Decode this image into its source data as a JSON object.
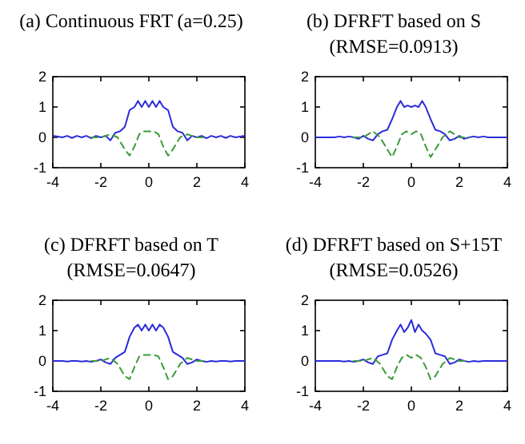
{
  "chart_data": [
    {
      "type": "line",
      "title": "(a) Continuous FRT (a=0.25)",
      "xlim": [
        -4,
        4
      ],
      "xticks": [
        -4,
        -2,
        0,
        2,
        4
      ],
      "ylim": [
        -1,
        2
      ],
      "yticks": [
        -1,
        0,
        1,
        2
      ],
      "series": [
        {
          "color": "#2b2bdc",
          "line_style": "solid",
          "x": [
            -4,
            -3.6,
            -3.4,
            -3.2,
            -3,
            -2.8,
            -2.6,
            -2.4,
            -2.2,
            -2,
            -1.8,
            -1.6,
            -1.4,
            -1.2,
            -1,
            -0.8,
            -0.6,
            -0.45,
            -0.3,
            -0.15,
            0,
            0.15,
            0.3,
            0.45,
            0.6,
            0.8,
            1,
            1.2,
            1.4,
            1.6,
            1.8,
            2,
            2.2,
            2.4,
            2.6,
            2.8,
            3,
            3.2,
            3.4,
            3.6,
            4
          ],
          "values": [
            0.05,
            0,
            0.05,
            -0.02,
            0.05,
            0,
            0.05,
            -0.03,
            0.05,
            0,
            0.05,
            -0.1,
            0.15,
            0.2,
            0.35,
            0.9,
            1.0,
            1.2,
            1.0,
            1.2,
            1.0,
            1.2,
            1.0,
            1.2,
            1.0,
            0.9,
            0.35,
            0.2,
            0.15,
            -0.1,
            0.05,
            0,
            0.05,
            -0.03,
            0.05,
            0,
            0.05,
            -0.02,
            0.05,
            0,
            0.05
          ]
        },
        {
          "color": "#3a9a3a",
          "line_style": "dashed",
          "x": [
            -2.4,
            -2,
            -1.6,
            -1.3,
            -1,
            -0.8,
            -0.6,
            -0.4,
            -0.2,
            0,
            0.2,
            0.4,
            0.6,
            0.8,
            1,
            1.3,
            1.6,
            2,
            2.4
          ],
          "values": [
            0,
            0,
            0.1,
            0,
            -0.4,
            -0.6,
            -0.3,
            0.1,
            0.2,
            0.2,
            0.2,
            0.1,
            -0.3,
            -0.6,
            -0.4,
            0,
            0.1,
            0,
            0
          ]
        }
      ]
    },
    {
      "type": "line",
      "title": "(b) DFRFT based on S",
      "subtitle": "(RMSE=0.0913)",
      "xlim": [
        -4,
        4
      ],
      "xticks": [
        -4,
        -2,
        0,
        2,
        4
      ],
      "ylim": [
        -1,
        2
      ],
      "yticks": [
        -1,
        0,
        1,
        2
      ],
      "series": [
        {
          "color": "#2b2bdc",
          "line_style": "solid",
          "x": [
            -4,
            -3.6,
            -3.4,
            -3.2,
            -3,
            -2.8,
            -2.6,
            -2.4,
            -2.2,
            -2,
            -1.8,
            -1.6,
            -1.4,
            -1.2,
            -1,
            -0.8,
            -0.6,
            -0.45,
            -0.3,
            -0.15,
            0,
            0.15,
            0.3,
            0.45,
            0.6,
            0.8,
            1,
            1.2,
            1.4,
            1.6,
            1.8,
            2,
            2.2,
            2.4,
            2.6,
            2.8,
            3,
            3.2,
            3.4,
            3.6,
            4
          ],
          "values": [
            0,
            0,
            0,
            0,
            0.03,
            0,
            0.03,
            0,
            -0.05,
            0.05,
            -0.05,
            -0.1,
            0.1,
            0.2,
            0.25,
            0.6,
            1.0,
            1.2,
            1.0,
            1.05,
            1.0,
            1.05,
            1.0,
            1.2,
            1.0,
            0.6,
            0.25,
            0.2,
            0.1,
            -0.1,
            -0.05,
            0.05,
            -0.05,
            0,
            0.03,
            0,
            0.03,
            0,
            0,
            0,
            0
          ]
        },
        {
          "color": "#3a9a3a",
          "line_style": "dashed",
          "x": [
            -2.4,
            -2,
            -1.6,
            -1.3,
            -1,
            -0.8,
            -0.6,
            -0.4,
            -0.2,
            0,
            0.2,
            0.4,
            0.6,
            0.8,
            1,
            1.3,
            1.6,
            2,
            2.4
          ],
          "values": [
            0,
            0,
            0.2,
            0,
            -0.4,
            -0.65,
            -0.3,
            0.1,
            0.2,
            0.1,
            0.2,
            0.1,
            -0.3,
            -0.65,
            -0.4,
            0,
            0.2,
            0,
            0
          ]
        }
      ]
    },
    {
      "type": "line",
      "title": "(c) DFRFT based on T",
      "subtitle": "(RMSE=0.0647)",
      "xlim": [
        -4,
        4
      ],
      "xticks": [
        -4,
        -2,
        0,
        2,
        4
      ],
      "ylim": [
        -1,
        2
      ],
      "yticks": [
        -1,
        0,
        1,
        2
      ],
      "series": [
        {
          "color": "#2b2bdc",
          "line_style": "solid",
          "x": [
            -4,
            -3.6,
            -3.4,
            -3.2,
            -3,
            -2.8,
            -2.6,
            -2.4,
            -2.2,
            -2,
            -1.8,
            -1.6,
            -1.4,
            -1.2,
            -1,
            -0.8,
            -0.6,
            -0.45,
            -0.3,
            -0.15,
            0,
            0.15,
            0.3,
            0.45,
            0.6,
            0.8,
            1,
            1.2,
            1.4,
            1.6,
            1.8,
            2,
            2.2,
            2.4,
            2.6,
            2.8,
            3,
            3.2,
            3.4,
            3.6,
            4
          ],
          "values": [
            0,
            0,
            -0.02,
            0,
            0,
            -0.02,
            0,
            -0.03,
            0,
            0.05,
            -0.05,
            -0.1,
            0.1,
            0.2,
            0.3,
            0.8,
            1.1,
            1.2,
            1.0,
            1.2,
            1.0,
            1.2,
            1.0,
            1.2,
            1.1,
            0.8,
            0.3,
            0.2,
            0.1,
            -0.1,
            -0.05,
            0.05,
            0,
            -0.03,
            0,
            -0.02,
            0,
            0,
            -0.02,
            0,
            0
          ]
        },
        {
          "color": "#3a9a3a",
          "line_style": "dashed",
          "x": [
            -2.4,
            -2,
            -1.6,
            -1.3,
            -1,
            -0.8,
            -0.6,
            -0.4,
            -0.2,
            0,
            0.2,
            0.4,
            0.6,
            0.8,
            1,
            1.3,
            1.6,
            2,
            2.4
          ],
          "values": [
            0,
            0,
            0.1,
            -0.1,
            -0.5,
            -0.6,
            -0.2,
            0.15,
            0.2,
            0.2,
            0.2,
            0.15,
            -0.2,
            -0.6,
            -0.5,
            -0.1,
            0.1,
            0,
            0
          ]
        }
      ]
    },
    {
      "type": "line",
      "title": "(d) DFRFT based on S+15T",
      "subtitle": "(RMSE=0.0526)",
      "xlim": [
        -4,
        4
      ],
      "xticks": [
        -4,
        -2,
        0,
        2,
        4
      ],
      "ylim": [
        -1,
        2
      ],
      "yticks": [
        -1,
        0,
        1,
        2
      ],
      "series": [
        {
          "color": "#2b2bdc",
          "line_style": "solid",
          "x": [
            -4,
            -3.6,
            -3.4,
            -3.2,
            -3,
            -2.8,
            -2.6,
            -2.4,
            -2.2,
            -2,
            -1.8,
            -1.6,
            -1.4,
            -1.2,
            -1,
            -0.8,
            -0.6,
            -0.45,
            -0.3,
            -0.15,
            0,
            0.15,
            0.3,
            0.45,
            0.6,
            0.8,
            1,
            1.2,
            1.4,
            1.6,
            1.8,
            2,
            2.2,
            2.4,
            2.6,
            2.8,
            3,
            3.2,
            3.4,
            3.6,
            4
          ],
          "values": [
            0,
            0,
            0,
            0,
            0,
            -0.02,
            0,
            -0.03,
            0,
            0.05,
            -0.05,
            -0.1,
            0.15,
            0.2,
            0.25,
            0.7,
            1.0,
            1.2,
            0.95,
            1.1,
            1.35,
            0.95,
            1.2,
            1.0,
            0.9,
            0.7,
            0.25,
            0.2,
            0.15,
            -0.1,
            -0.05,
            0.05,
            0,
            -0.03,
            0,
            -0.02,
            0,
            0,
            0,
            0,
            0
          ]
        },
        {
          "color": "#3a9a3a",
          "line_style": "dashed",
          "x": [
            -2.4,
            -2,
            -1.6,
            -1.3,
            -1,
            -0.8,
            -0.6,
            -0.4,
            -0.2,
            0,
            0.2,
            0.4,
            0.6,
            0.8,
            1,
            1.3,
            1.6,
            2,
            2.4
          ],
          "values": [
            0,
            0,
            0.1,
            -0.1,
            -0.5,
            -0.6,
            -0.2,
            0.1,
            0.2,
            0.1,
            0.2,
            0.1,
            -0.2,
            -0.6,
            -0.5,
            -0.1,
            0.1,
            0,
            0
          ]
        }
      ]
    }
  ]
}
